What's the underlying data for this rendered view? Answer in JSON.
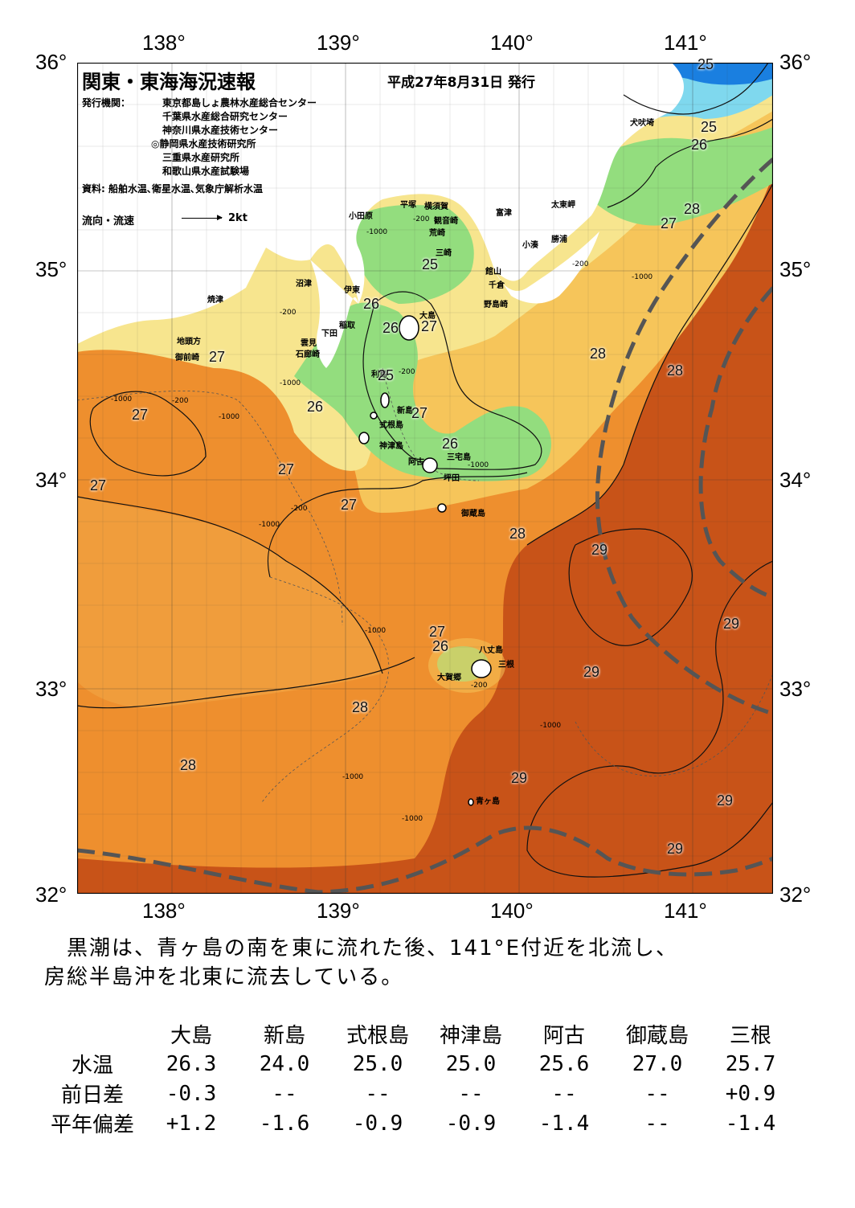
{
  "header": {
    "title": "関東・東海海況速報",
    "date": "平成27年8月31日 発行",
    "issuer_label": "発行機関：",
    "issuers": [
      "東京都島しょ農林水産総合センター",
      "千葉県水産総合研究センター",
      "神奈川県水産技術センター",
      "◎静岡県水産技術研究所",
      "三重県水産研究所",
      "和歌山県水産試験場"
    ],
    "source": "資料: 船舶水温､衛星水温､気象庁解析水温",
    "flow_label": "流向・流速",
    "flow_scale": "2kt"
  },
  "axes": {
    "lon_labels": [
      "138°",
      "139°",
      "140°",
      "141°"
    ],
    "lat_labels": [
      "36°",
      "35°",
      "34°",
      "33°",
      "32°"
    ]
  },
  "places": {
    "p1": "犬吠埼",
    "p2": "太東岬",
    "p3": "勝浦",
    "p4": "小湊",
    "p5": "富津",
    "p6": "平塚",
    "p7": "横須賀",
    "p8": "観音崎",
    "p9": "小田原",
    "p10": "荒崎",
    "p11": "三崎",
    "p12": "館山",
    "p13": "千倉",
    "p14": "野島崎",
    "p15": "沼津",
    "p16": "伊東",
    "p17": "焼津",
    "p18": "稲取",
    "p19": "下田",
    "p20": "雲見",
    "p21": "石廊崎",
    "p22": "大島",
    "p23": "地頭方",
    "p24": "御前崎",
    "p25": "利島",
    "p26": "新島",
    "p27": "式根島",
    "p28": "神津島",
    "p29": "阿古",
    "p30": "三宅島",
    "p31": "坪田",
    "p32": "御蔵島",
    "p33": "八丈島",
    "p34": "三根",
    "p35": "大賀郷",
    "p36": "青ヶ島"
  },
  "isotherms": {
    "i1": "25",
    "i2": "25",
    "i3": "26",
    "i4": "28",
    "i5": "27",
    "i6": "25",
    "i7": "26",
    "i8": "26",
    "i9": "27",
    "i10": "27",
    "i11": "28",
    "i12": "28",
    "i13": "25",
    "i14": "27",
    "i15": "26",
    "i16": "27",
    "i17": "26",
    "i18": "27",
    "i19": "27",
    "i20": "27",
    "i21": "28",
    "i22": "29",
    "i23": "29",
    "i24": "27",
    "i25": "26",
    "i26": "29",
    "i27": "28",
    "i28": "28",
    "i29": "29",
    "i30": "29",
    "i31": "29"
  },
  "depth_labels": {
    "d1": "-200",
    "d2": "-1000",
    "d3": "-1000",
    "d4": "-200",
    "d5": "-200",
    "d6": "-1000",
    "d7": "-200",
    "d8": "-1000",
    "d9": "-200",
    "d10": "-1000",
    "d11": "-1000",
    "d12": "-1000",
    "d13": "-200",
    "d14": "-1000",
    "d15": "-1000",
    "d16": "-1000",
    "d17": "-1000",
    "d18": "-200"
  },
  "legend_colors": {
    "t25": "#2fb8e6",
    "t26": "#8fe08a",
    "t27": "#f8e48a",
    "t28": "#f2a23c",
    "t29": "#c44a12",
    "kuroshio_axis": "#555555"
  },
  "summary": [
    "　黒潮は、青ヶ島の南を東に流れた後、141°E付近を北流し、",
    "房総半島沖を北東に流去している。"
  ],
  "obs_table": {
    "stations": [
      "大島",
      "新島",
      "式根島",
      "神津島",
      "阿古",
      "御蔵島",
      "三根"
    ],
    "rows": [
      {
        "label": "水温",
        "values": [
          "26.3",
          "24.0",
          "25.0",
          "25.0",
          "25.6",
          "27.0",
          "25.7"
        ]
      },
      {
        "label": "前日差",
        "values": [
          "-0.3",
          "--",
          "--",
          "--",
          "--",
          "--",
          "+0.9"
        ]
      },
      {
        "label": "平年偏差",
        "values": [
          "+1.2",
          "-1.6",
          "-0.9",
          "-0.9",
          "-1.4",
          "--",
          "-1.4"
        ]
      }
    ]
  }
}
